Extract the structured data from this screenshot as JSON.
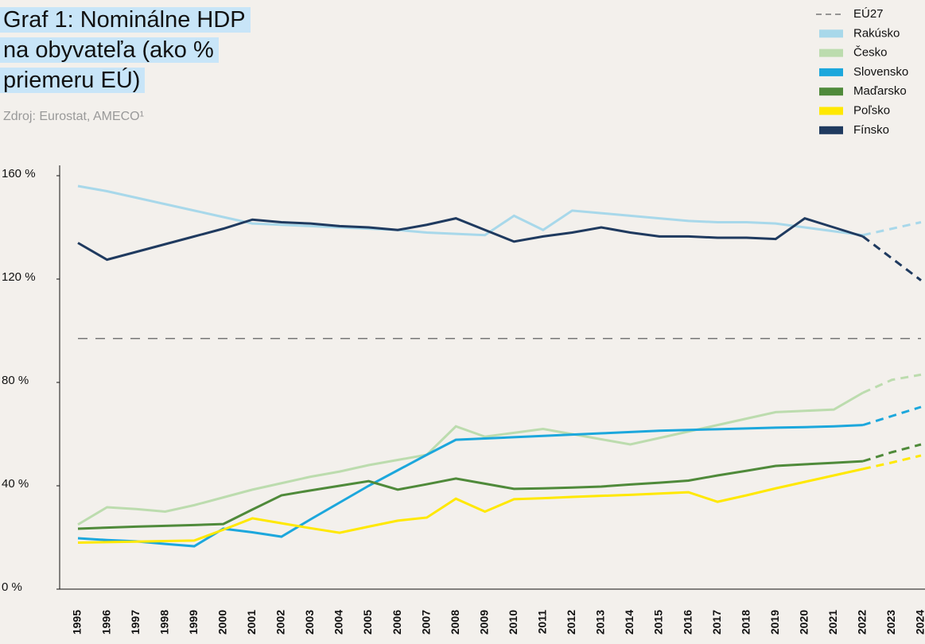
{
  "chart_data": {
    "type": "line",
    "title": "Graf 1: Nominálne HDP na obyvateľa (ako % priemeru EÚ)",
    "subtitle": "Zdroj: Eurostat, AMECO¹",
    "categories": [
      "1995",
      "1996",
      "1997",
      "1998",
      "1999",
      "2000",
      "2001",
      "2002",
      "2003",
      "2004",
      "2005",
      "2006",
      "2007",
      "2008",
      "2009",
      "2010",
      "2011",
      "2012",
      "2013",
      "2014",
      "2015",
      "2016",
      "2017",
      "2018",
      "2019",
      "2020",
      "2021",
      "2022",
      "2023",
      "2024"
    ],
    "forecast_from": "2022",
    "ylim": [
      0,
      164
    ],
    "yticks": [
      {
        "value": 0,
        "label": "0 %"
      },
      {
        "value": 40,
        "label": "40 %"
      },
      {
        "value": 80,
        "label": "80 %"
      },
      {
        "value": 120,
        "label": "120 %"
      },
      {
        "value": 160,
        "label": "160 %"
      }
    ],
    "legend": "top-right",
    "series": [
      {
        "name": "EÚ27",
        "color": "#777777",
        "style": "dashed",
        "values": [
          97,
          97,
          97,
          97,
          97,
          97,
          97,
          97,
          97,
          97,
          97,
          97,
          97,
          97,
          97,
          97,
          97,
          97,
          97,
          97,
          97,
          97,
          97,
          97,
          97,
          97,
          97,
          97,
          97,
          97
        ]
      },
      {
        "name": "Rakúsko",
        "color": "#a8d8ea",
        "values": [
          156,
          154,
          151.5,
          149,
          146.5,
          144,
          141.5,
          141,
          140.5,
          140,
          139.5,
          139,
          138,
          137.5,
          137,
          144.5,
          139,
          146.5,
          145.5,
          144.5,
          143.5,
          142.5,
          142,
          142,
          141.5,
          140,
          138.5,
          137,
          139.5,
          142
        ]
      },
      {
        "name": "Česko",
        "color": "#bcdcae",
        "values": [
          25,
          31.7,
          31,
          30,
          32.5,
          35.5,
          38.5,
          41,
          43.5,
          45.5,
          48,
          50,
          52,
          63,
          59,
          60.5,
          62,
          60,
          58,
          56,
          58.5,
          61,
          63.5,
          66,
          68.5,
          69,
          69.5,
          76,
          81,
          83
        ]
      },
      {
        "name": "Slovensko",
        "color": "#1ca7dc",
        "values": [
          19.7,
          19,
          18.5,
          17.5,
          16.6,
          23.4,
          22,
          20.3,
          27,
          33.5,
          40,
          46,
          52,
          57.8,
          58.3,
          58.8,
          59.3,
          59.8,
          60.3,
          60.8,
          61.3,
          61.6,
          61.9,
          62.2,
          62.5,
          62.7,
          63,
          63.5,
          67,
          70.5
        ]
      },
      {
        "name": "Maďarsko",
        "color": "#4f8a3a",
        "values": [
          23.4,
          23.8,
          24.2,
          24.5,
          24.8,
          25.2,
          30.8,
          36.3,
          38.2,
          40,
          41.8,
          38.5,
          40.6,
          42.8,
          40.8,
          38.8,
          39,
          39.3,
          39.7,
          40.5,
          41.2,
          42,
          44,
          45.8,
          47.7,
          48.3,
          48.9,
          49.5,
          53,
          56
        ]
      },
      {
        "name": "Poľsko",
        "color": "#ffe800",
        "values": [
          18,
          18.2,
          18.4,
          18.6,
          18.8,
          23,
          27.4,
          25.5,
          23.6,
          21.8,
          24.2,
          26.5,
          27.7,
          35,
          30,
          34.8,
          35.2,
          35.7,
          36.1,
          36.5,
          37,
          37.5,
          33.8,
          36.3,
          39,
          41.5,
          44,
          46.5,
          49,
          51.7
        ]
      },
      {
        "name": "Fínsko",
        "color": "#1f3a5f",
        "values": [
          134,
          127.5,
          130.5,
          133.5,
          136.5,
          139.5,
          143,
          142,
          141.5,
          140.5,
          140,
          139,
          141,
          143.5,
          139,
          134.5,
          136.5,
          138,
          140,
          138,
          136.5,
          136.5,
          136,
          136,
          135.5,
          143.5,
          140,
          136.5,
          128,
          119.5
        ]
      }
    ]
  }
}
